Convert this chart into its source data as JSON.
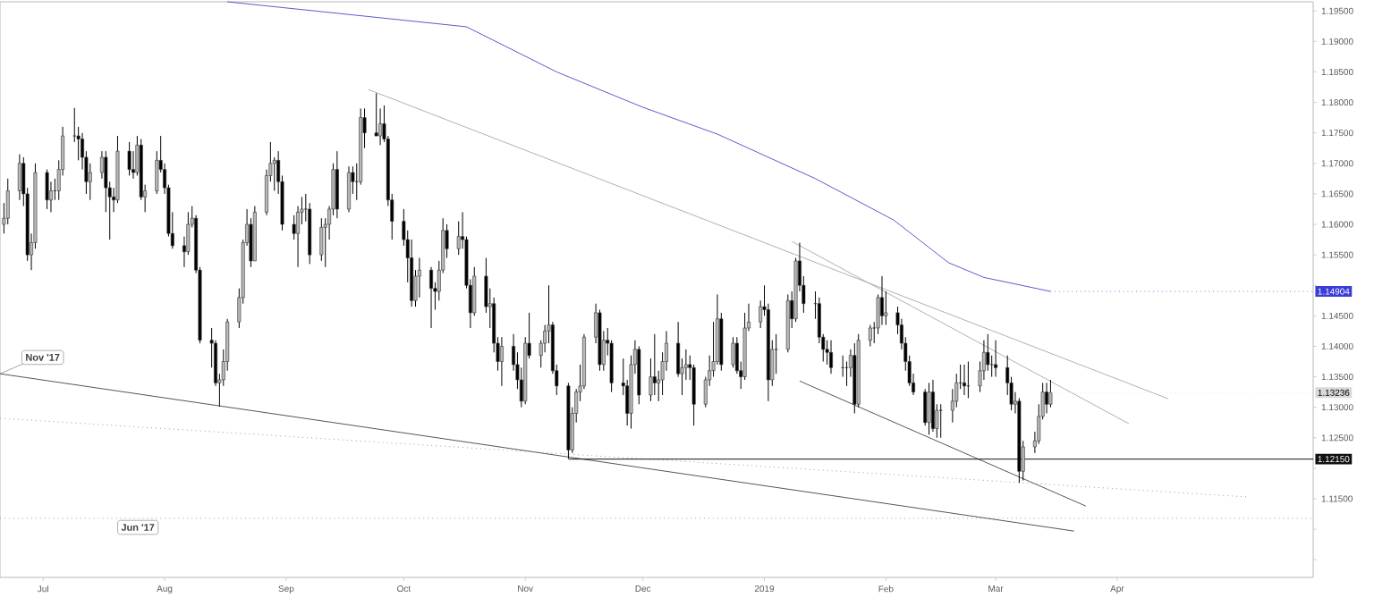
{
  "chart_data": {
    "type": "candlestick",
    "xlim": [
      "2018-06-20",
      "2019-05-21"
    ],
    "ylim": [
      1.1021,
      1.1965
    ],
    "xticks": [
      {
        "value": "2018-07-01",
        "label": "Jul"
      },
      {
        "value": "2018-08-01",
        "label": "Aug"
      },
      {
        "value": "2018-09-01",
        "label": "Sep"
      },
      {
        "value": "2018-10-01",
        "label": "Oct"
      },
      {
        "value": "2018-11-01",
        "label": "Nov"
      },
      {
        "value": "2018-12-01",
        "label": "Dec"
      },
      {
        "value": "2019-01-01",
        "label": "2019"
      },
      {
        "value": "2019-02-01",
        "label": "Feb"
      },
      {
        "value": "2019-03-01",
        "label": "Mar"
      },
      {
        "value": "2019-04-01",
        "label": "Apr"
      }
    ],
    "yticks": [
      {
        "value": 1.195,
        "label": "1.19500"
      },
      {
        "value": 1.19,
        "label": "1.19000"
      },
      {
        "value": 1.185,
        "label": "1.18500"
      },
      {
        "value": 1.18,
        "label": "1.18000"
      },
      {
        "value": 1.175,
        "label": "1.17500"
      },
      {
        "value": 1.17,
        "label": "1.17000"
      },
      {
        "value": 1.165,
        "label": "1.16500"
      },
      {
        "value": 1.16,
        "label": "1.16000"
      },
      {
        "value": 1.155,
        "label": "1.15500"
      },
      {
        "value": 1.15,
        "label": null
      },
      {
        "value": 1.145,
        "label": "1.14500"
      },
      {
        "value": 1.14,
        "label": "1.14000"
      },
      {
        "value": 1.135,
        "label": "1.13500"
      },
      {
        "value": 1.13,
        "label": "1.13000"
      },
      {
        "value": 1.125,
        "label": "1.12500"
      },
      {
        "value": 1.12,
        "label": null
      },
      {
        "value": 1.115,
        "label": "1.11500"
      },
      {
        "value": 1.11,
        "label": null
      },
      {
        "value": 1.105,
        "label": null
      }
    ],
    "x": [
      "2018-06-21",
      "2018-06-22",
      "2018-06-25",
      "2018-06-26",
      "2018-06-27",
      "2018-06-28",
      "2018-06-29",
      "2018-07-02",
      "2018-07-03",
      "2018-07-04",
      "2018-07-05",
      "2018-07-06",
      "2018-07-09",
      "2018-07-10",
      "2018-07-11",
      "2018-07-12",
      "2018-07-13",
      "2018-07-16",
      "2018-07-17",
      "2018-07-18",
      "2018-07-19",
      "2018-07-20",
      "2018-07-23",
      "2018-07-24",
      "2018-07-25",
      "2018-07-26",
      "2018-07-27",
      "2018-07-30",
      "2018-07-31",
      "2018-08-01",
      "2018-08-02",
      "2018-08-03",
      "2018-08-06",
      "2018-08-07",
      "2018-08-08",
      "2018-08-09",
      "2018-08-10",
      "2018-08-13",
      "2018-08-14",
      "2018-08-15",
      "2018-08-16",
      "2018-08-17",
      "2018-08-20",
      "2018-08-21",
      "2018-08-22",
      "2018-08-23",
      "2018-08-24",
      "2018-08-27",
      "2018-08-28",
      "2018-08-29",
      "2018-08-30",
      "2018-08-31",
      "2018-09-03",
      "2018-09-04",
      "2018-09-05",
      "2018-09-06",
      "2018-09-07",
      "2018-09-10",
      "2018-09-11",
      "2018-09-12",
      "2018-09-13",
      "2018-09-14",
      "2018-09-17",
      "2018-09-18",
      "2018-09-19",
      "2018-09-20",
      "2018-09-21",
      "2018-09-24",
      "2018-09-25",
      "2018-09-26",
      "2018-09-27",
      "2018-09-28",
      "2018-10-01",
      "2018-10-02",
      "2018-10-03",
      "2018-10-04",
      "2018-10-05",
      "2018-10-08",
      "2018-10-09",
      "2018-10-10",
      "2018-10-11",
      "2018-10-12",
      "2018-10-15",
      "2018-10-16",
      "2018-10-17",
      "2018-10-18",
      "2018-10-19",
      "2018-10-22",
      "2018-10-23",
      "2018-10-24",
      "2018-10-25",
      "2018-10-26",
      "2018-10-29",
      "2018-10-30",
      "2018-10-31",
      "2018-11-01",
      "2018-11-02",
      "2018-11-05",
      "2018-11-06",
      "2018-11-07",
      "2018-11-08",
      "2018-11-09",
      "2018-11-12",
      "2018-11-13",
      "2018-11-14",
      "2018-11-15",
      "2018-11-16",
      "2018-11-19",
      "2018-11-20",
      "2018-11-21",
      "2018-11-22",
      "2018-11-23",
      "2018-11-26",
      "2018-11-27",
      "2018-11-28",
      "2018-11-29",
      "2018-11-30",
      "2018-12-03",
      "2018-12-04",
      "2018-12-05",
      "2018-12-06",
      "2018-12-07",
      "2018-12-10",
      "2018-12-11",
      "2018-12-12",
      "2018-12-13",
      "2018-12-14",
      "2018-12-17",
      "2018-12-18",
      "2018-12-19",
      "2018-12-20",
      "2018-12-21",
      "2018-12-24",
      "2018-12-25",
      "2018-12-26",
      "2018-12-27",
      "2018-12-28",
      "2018-12-31",
      "2019-01-01",
      "2019-01-02",
      "2019-01-03",
      "2019-01-04",
      "2019-01-07",
      "2019-01-08",
      "2019-01-09",
      "2019-01-10",
      "2019-01-11",
      "2019-01-14",
      "2019-01-15",
      "2019-01-16",
      "2019-01-17",
      "2019-01-18",
      "2019-01-21",
      "2019-01-22",
      "2019-01-23",
      "2019-01-24",
      "2019-01-25",
      "2019-01-28",
      "2019-01-29",
      "2019-01-30",
      "2019-01-31",
      "2019-02-01",
      "2019-02-04",
      "2019-02-05",
      "2019-02-06",
      "2019-02-07",
      "2019-02-08",
      "2019-02-11",
      "2019-02-12",
      "2019-02-13",
      "2019-02-14",
      "2019-02-15",
      "2019-02-18",
      "2019-02-19",
      "2019-02-20",
      "2019-02-21",
      "2019-02-22",
      "2019-02-25",
      "2019-02-26",
      "2019-02-27",
      "2019-02-28",
      "2019-03-01",
      "2019-03-04",
      "2019-03-05",
      "2019-03-06",
      "2019-03-07",
      "2019-03-08",
      "2019-03-11",
      "2019-03-12",
      "2019-03-13",
      "2019-03-14",
      "2019-03-15"
    ],
    "ohlc": [
      [
        1.16,
        1.1635,
        1.1585,
        1.161
      ],
      [
        1.161,
        1.1675,
        1.16,
        1.1655
      ],
      [
        1.1655,
        1.1715,
        1.164,
        1.17
      ],
      [
        1.17,
        1.171,
        1.163,
        1.165
      ],
      [
        1.165,
        1.166,
        1.154,
        1.155
      ],
      [
        1.155,
        1.1585,
        1.1525,
        1.157
      ],
      [
        1.157,
        1.17,
        1.156,
        1.1685
      ],
      [
        1.1685,
        1.169,
        1.1625,
        1.164
      ],
      [
        1.164,
        1.167,
        1.162,
        1.1655
      ],
      [
        1.1655,
        1.1675,
        1.164,
        1.1655
      ],
      [
        1.1655,
        1.1705,
        1.164,
        1.169
      ],
      [
        1.169,
        1.176,
        1.168,
        1.1745
      ],
      [
        1.1745,
        1.1791,
        1.1735,
        1.1745
      ],
      [
        1.1745,
        1.176,
        1.1705,
        1.174
      ],
      [
        1.174,
        1.175,
        1.169,
        1.171
      ],
      [
        1.171,
        1.172,
        1.165,
        1.167
      ],
      [
        1.167,
        1.17,
        1.164,
        1.1685
      ],
      [
        1.1685,
        1.172,
        1.1675,
        1.171
      ],
      [
        1.171,
        1.172,
        1.162,
        1.166
      ],
      [
        1.166,
        1.167,
        1.1575,
        1.1645
      ],
      [
        1.1645,
        1.166,
        1.162,
        1.164
      ],
      [
        1.164,
        1.1745,
        1.1635,
        1.172
      ],
      [
        1.172,
        1.1735,
        1.168,
        1.169
      ],
      [
        1.169,
        1.172,
        1.1675,
        1.1685
      ],
      [
        1.1685,
        1.1745,
        1.168,
        1.173
      ],
      [
        1.173,
        1.174,
        1.164,
        1.1645
      ],
      [
        1.1645,
        1.1665,
        1.162,
        1.1655
      ],
      [
        1.1655,
        1.172,
        1.165,
        1.1705
      ],
      [
        1.1705,
        1.1745,
        1.1685,
        1.169
      ],
      [
        1.169,
        1.17,
        1.165,
        1.166
      ],
      [
        1.166,
        1.1665,
        1.158,
        1.1585
      ],
      [
        1.1585,
        1.162,
        1.156,
        1.1565
      ],
      [
        1.1565,
        1.158,
        1.153,
        1.1555
      ],
      [
        1.1555,
        1.162,
        1.155,
        1.16
      ],
      [
        1.16,
        1.163,
        1.1595,
        1.161
      ],
      [
        1.161,
        1.1615,
        1.152,
        1.1525
      ],
      [
        1.1525,
        1.153,
        1.1405,
        1.141
      ],
      [
        1.141,
        1.143,
        1.1365,
        1.1405
      ],
      [
        1.1405,
        1.141,
        1.1335,
        1.134
      ],
      [
        1.134,
        1.1355,
        1.1301,
        1.1345
      ],
      [
        1.1345,
        1.1395,
        1.1335,
        1.1375
      ],
      [
        1.1375,
        1.1445,
        1.136,
        1.144
      ],
      [
        1.144,
        1.1495,
        1.143,
        1.148
      ],
      [
        1.148,
        1.1575,
        1.147,
        1.157
      ],
      [
        1.157,
        1.1625,
        1.1565,
        1.16
      ],
      [
        1.16,
        1.161,
        1.153,
        1.154
      ],
      [
        1.154,
        1.163,
        1.154,
        1.162
      ],
      [
        1.162,
        1.169,
        1.1615,
        1.168
      ],
      [
        1.168,
        1.1735,
        1.167,
        1.17
      ],
      [
        1.17,
        1.171,
        1.1655,
        1.1705
      ],
      [
        1.1705,
        1.172,
        1.165,
        1.167
      ],
      [
        1.167,
        1.168,
        1.159,
        1.16
      ],
      [
        1.16,
        1.1615,
        1.1575,
        1.1585
      ],
      [
        1.1585,
        1.163,
        1.153,
        1.162
      ],
      [
        1.162,
        1.1645,
        1.16,
        1.1625
      ],
      [
        1.1625,
        1.165,
        1.1605,
        1.1625
      ],
      [
        1.1625,
        1.1635,
        1.1535,
        1.155
      ],
      [
        1.155,
        1.161,
        1.154,
        1.1595
      ],
      [
        1.1595,
        1.161,
        1.153,
        1.16
      ],
      [
        1.16,
        1.163,
        1.1575,
        1.1625
      ],
      [
        1.1625,
        1.17,
        1.1615,
        1.169
      ],
      [
        1.169,
        1.172,
        1.161,
        1.1625
      ],
      [
        1.1625,
        1.1695,
        1.162,
        1.1685
      ],
      [
        1.1685,
        1.1695,
        1.165,
        1.167
      ],
      [
        1.167,
        1.17,
        1.164,
        1.167
      ],
      [
        1.167,
        1.179,
        1.1665,
        1.1775
      ],
      [
        1.1775,
        1.179,
        1.1725,
        1.175
      ],
      [
        1.175,
        1.1815,
        1.1745,
        1.1745
      ],
      [
        1.1745,
        1.179,
        1.173,
        1.1765
      ],
      [
        1.1765,
        1.1795,
        1.1735,
        1.174
      ],
      [
        1.174,
        1.1745,
        1.163,
        1.164
      ],
      [
        1.164,
        1.165,
        1.1575,
        1.1605
      ],
      [
        1.1605,
        1.1625,
        1.1565,
        1.1575
      ],
      [
        1.1575,
        1.159,
        1.1505,
        1.1545
      ],
      [
        1.1545,
        1.1575,
        1.1465,
        1.1475
      ],
      [
        1.1475,
        1.1525,
        1.1465,
        1.1515
      ],
      [
        1.1515,
        1.1545,
        1.148,
        1.1525
      ],
      [
        1.1525,
        1.153,
        1.143,
        1.1495
      ],
      [
        1.1495,
        1.1505,
        1.146,
        1.149
      ],
      [
        1.149,
        1.154,
        1.1475,
        1.1525
      ],
      [
        1.1525,
        1.161,
        1.152,
        1.159
      ],
      [
        1.159,
        1.16,
        1.1545,
        1.156
      ],
      [
        1.156,
        1.1605,
        1.155,
        1.158
      ],
      [
        1.158,
        1.162,
        1.156,
        1.1575
      ],
      [
        1.1575,
        1.158,
        1.1495,
        1.15
      ],
      [
        1.15,
        1.151,
        1.143,
        1.1455
      ],
      [
        1.1455,
        1.153,
        1.145,
        1.1515
      ],
      [
        1.1515,
        1.1545,
        1.1455,
        1.1465
      ],
      [
        1.1465,
        1.1495,
        1.143,
        1.147
      ],
      [
        1.147,
        1.148,
        1.139,
        1.1405
      ],
      [
        1.1405,
        1.1415,
        1.136,
        1.1375
      ],
      [
        1.1375,
        1.1415,
        1.1335,
        1.14
      ],
      [
        1.14,
        1.142,
        1.136,
        1.137
      ],
      [
        1.137,
        1.139,
        1.133,
        1.1345
      ],
      [
        1.1345,
        1.1365,
        1.13,
        1.131
      ],
      [
        1.131,
        1.1415,
        1.1305,
        1.1405
      ],
      [
        1.1405,
        1.1455,
        1.138,
        1.1385
      ],
      [
        1.1385,
        1.141,
        1.1365,
        1.1405
      ],
      [
        1.1405,
        1.1435,
        1.139,
        1.1425
      ],
      [
        1.1425,
        1.15,
        1.1405,
        1.1435
      ],
      [
        1.1435,
        1.144,
        1.1355,
        1.136
      ],
      [
        1.136,
        1.137,
        1.132,
        1.1335
      ],
      [
        1.1335,
        1.134,
        1.1216,
        1.123
      ],
      [
        1.123,
        1.13,
        1.1225,
        1.129
      ],
      [
        1.129,
        1.133,
        1.1275,
        1.1325
      ],
      [
        1.1325,
        1.137,
        1.131,
        1.1335
      ],
      [
        1.1335,
        1.142,
        1.133,
        1.1415
      ],
      [
        1.1415,
        1.147,
        1.1405,
        1.1455
      ],
      [
        1.1455,
        1.146,
        1.136,
        1.137
      ],
      [
        1.137,
        1.1425,
        1.136,
        1.141
      ],
      [
        1.141,
        1.143,
        1.1385,
        1.1405
      ],
      [
        1.1405,
        1.141,
        1.1325,
        1.134
      ],
      [
        1.134,
        1.138,
        1.132,
        1.1335
      ],
      [
        1.1335,
        1.1345,
        1.127,
        1.129
      ],
      [
        1.129,
        1.1385,
        1.1265,
        1.137
      ],
      [
        1.137,
        1.141,
        1.1355,
        1.1395
      ],
      [
        1.1395,
        1.14,
        1.1305,
        1.132
      ],
      [
        1.132,
        1.138,
        1.131,
        1.135
      ],
      [
        1.135,
        1.142,
        1.132,
        1.134
      ],
      [
        1.134,
        1.136,
        1.131,
        1.1345
      ],
      [
        1.1345,
        1.139,
        1.132,
        1.1375
      ],
      [
        1.1375,
        1.1425,
        1.136,
        1.1405
      ],
      [
        1.1405,
        1.144,
        1.135,
        1.1355
      ],
      [
        1.1355,
        1.138,
        1.132,
        1.1365
      ],
      [
        1.1365,
        1.1395,
        1.1345,
        1.137
      ],
      [
        1.137,
        1.1385,
        1.1345,
        1.1365
      ],
      [
        1.1365,
        1.137,
        1.127,
        1.1305
      ],
      [
        1.1305,
        1.135,
        1.13,
        1.1345
      ],
      [
        1.1345,
        1.1385,
        1.1335,
        1.136
      ],
      [
        1.136,
        1.144,
        1.135,
        1.1375
      ],
      [
        1.1375,
        1.1485,
        1.137,
        1.1445
      ],
      [
        1.1445,
        1.1455,
        1.136,
        1.137
      ],
      [
        1.137,
        1.1415,
        1.1365,
        1.1405
      ],
      [
        1.1405,
        1.1415,
        1.1355,
        1.136
      ],
      [
        1.136,
        1.1375,
        1.133,
        1.135
      ],
      [
        1.135,
        1.1455,
        1.1345,
        1.143
      ],
      [
        1.143,
        1.147,
        1.1425,
        1.144
      ],
      [
        1.144,
        1.1475,
        1.143,
        1.1465
      ],
      [
        1.1465,
        1.15,
        1.145,
        1.146
      ],
      [
        1.146,
        1.147,
        1.131,
        1.1345
      ],
      [
        1.1345,
        1.141,
        1.1335,
        1.1395
      ],
      [
        1.1395,
        1.142,
        1.1355,
        1.1395
      ],
      [
        1.1395,
        1.1485,
        1.139,
        1.1475
      ],
      [
        1.1475,
        1.149,
        1.143,
        1.1445
      ],
      [
        1.1445,
        1.1545,
        1.144,
        1.154
      ],
      [
        1.154,
        1.157,
        1.149,
        1.15
      ],
      [
        1.15,
        1.1515,
        1.1455,
        1.147
      ],
      [
        1.147,
        1.149,
        1.1445,
        1.147
      ],
      [
        1.147,
        1.148,
        1.1405,
        1.1415
      ],
      [
        1.1415,
        1.142,
        1.1375,
        1.1395
      ],
      [
        1.1395,
        1.141,
        1.137,
        1.139
      ],
      [
        1.139,
        1.141,
        1.1355,
        1.1365
      ],
      [
        1.1365,
        1.1385,
        1.135,
        1.1365
      ],
      [
        1.1365,
        1.1375,
        1.1335,
        1.1365
      ],
      [
        1.1365,
        1.1395,
        1.135,
        1.1385
      ],
      [
        1.1385,
        1.1405,
        1.129,
        1.1305
      ],
      [
        1.1305,
        1.142,
        1.13,
        1.141
      ],
      [
        1.141,
        1.1435,
        1.14,
        1.143
      ],
      [
        1.143,
        1.144,
        1.1405,
        1.143
      ],
      [
        1.143,
        1.1485,
        1.142,
        1.148
      ],
      [
        1.148,
        1.1515,
        1.1435,
        1.145
      ],
      [
        1.145,
        1.149,
        1.1435,
        1.1455
      ],
      [
        1.1455,
        1.1465,
        1.142,
        1.1435
      ],
      [
        1.1435,
        1.1445,
        1.1395,
        1.1405
      ],
      [
        1.1405,
        1.1415,
        1.136,
        1.1375
      ],
      [
        1.1375,
        1.1385,
        1.1335,
        1.134
      ],
      [
        1.134,
        1.1355,
        1.132,
        1.1325
      ],
      [
        1.1325,
        1.133,
        1.127,
        1.1275
      ],
      [
        1.1275,
        1.134,
        1.1255,
        1.1325
      ],
      [
        1.1325,
        1.1345,
        1.126,
        1.1265
      ],
      [
        1.1265,
        1.1305,
        1.125,
        1.1295
      ],
      [
        1.1295,
        1.1305,
        1.125,
        1.1295
      ],
      [
        1.1295,
        1.133,
        1.1275,
        1.131
      ],
      [
        1.131,
        1.1355,
        1.13,
        1.134
      ],
      [
        1.134,
        1.137,
        1.133,
        1.134
      ],
      [
        1.134,
        1.137,
        1.132,
        1.1335
      ],
      [
        1.1335,
        1.1375,
        1.1315,
        1.1335
      ],
      [
        1.1335,
        1.1375,
        1.1325,
        1.136
      ],
      [
        1.136,
        1.141,
        1.1345,
        1.139
      ],
      [
        1.139,
        1.142,
        1.136,
        1.137
      ],
      [
        1.137,
        1.1385,
        1.135,
        1.137
      ],
      [
        1.137,
        1.141,
        1.135,
        1.1365
      ],
      [
        1.1365,
        1.1385,
        1.132,
        1.134
      ],
      [
        1.134,
        1.135,
        1.1295,
        1.1305
      ],
      [
        1.1305,
        1.1325,
        1.129,
        1.131
      ],
      [
        1.131,
        1.1315,
        1.1176,
        1.1195
      ],
      [
        1.1195,
        1.1245,
        1.118,
        1.1235
      ],
      [
        1.1235,
        1.126,
        1.1225,
        1.1245
      ],
      [
        1.1245,
        1.1305,
        1.124,
        1.1285
      ],
      [
        1.1285,
        1.134,
        1.128,
        1.1325
      ],
      [
        1.1325,
        1.134,
        1.129,
        1.1305
      ],
      [
        1.1305,
        1.1345,
        1.13,
        1.1324
      ]
    ],
    "series": [
      {
        "type": "line",
        "color": "#5a5acd",
        "line_style": "solid",
        "x": [
          "2018-08-17",
          "2018-10-17",
          "2018-11-09",
          "2018-12-01",
          "2018-12-20",
          "2019-01-14",
          "2019-02-03",
          "2019-02-17",
          "2019-02-26",
          "2019-03-15"
        ],
        "values": [
          1.1965,
          1.1924,
          1.185,
          1.1792,
          1.1748,
          1.1675,
          1.1607,
          1.1537,
          1.1513,
          1.149
        ]
      },
      {
        "type": "line",
        "color": "#b0b0b0",
        "line_style": "solid",
        "x": [
          "2018-09-22",
          "2019-04-14"
        ],
        "values": [
          1.1821,
          1.1314
        ]
      },
      {
        "type": "line",
        "color": "#b0b0b0",
        "line_style": "solid",
        "x": [
          "2019-01-08",
          "2019-04-04"
        ],
        "values": [
          1.1572,
          1.1273
        ]
      },
      {
        "type": "line",
        "color": "#555555",
        "line_style": "solid",
        "x": [
          "2019-01-10",
          "2019-03-24"
        ],
        "values": [
          1.1343,
          1.1138
        ]
      },
      {
        "type": "line",
        "color": "#555555",
        "line_style": "solid",
        "x": [
          "2018-06-20",
          "2019-03-21"
        ],
        "values": [
          1.1355,
          1.1097
        ]
      },
      {
        "type": "line",
        "color": "#999999",
        "line_style": "dotted",
        "x": [
          "2018-06-20",
          "2019-05-04"
        ],
        "values": [
          1.1282,
          1.1153
        ]
      },
      {
        "type": "line",
        "color": "#111111",
        "line_style": "solid",
        "x": [
          "2018-11-12",
          "2019-05-21"
        ],
        "values": [
          1.1215,
          1.1215
        ]
      }
    ],
    "ref_lines": [
      {
        "axis": "y",
        "value": 1.1118,
        "label": "Jun '17",
        "color": "#999999",
        "line_style": "dotted"
      }
    ],
    "annotations": [
      {
        "text": "Nov '17",
        "x": "2018-06-20",
        "y": 1.1355
      },
      {
        "text": "1.14904",
        "x": "2019-03-15",
        "y": 1.149
      },
      {
        "text": "1.13236",
        "x": "2019-03-15",
        "y": 1.1324
      },
      {
        "text": "1.12150",
        "x": "2019-05-21",
        "y": 1.1215
      }
    ]
  }
}
